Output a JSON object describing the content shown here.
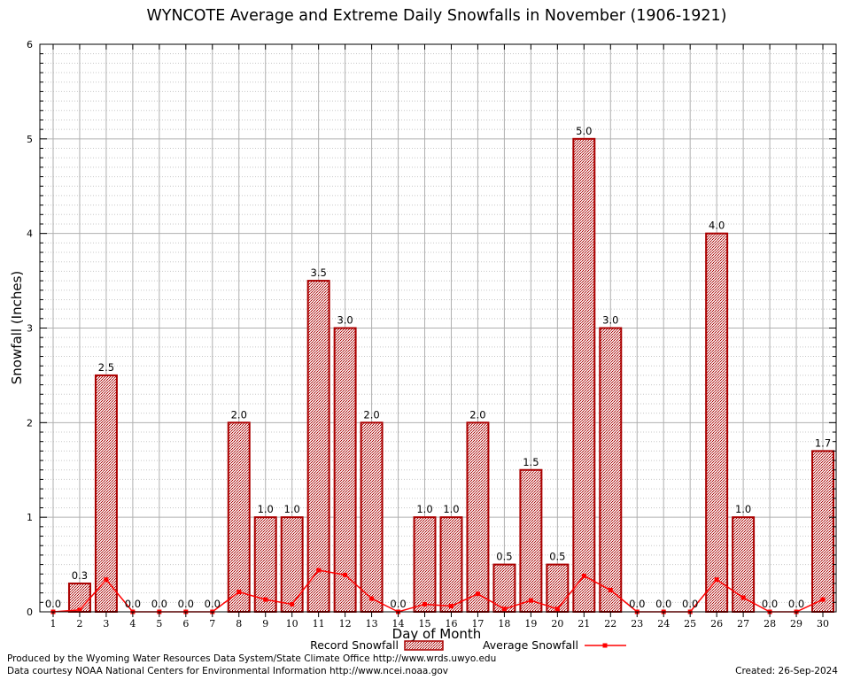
{
  "chart_data": {
    "type": "bar",
    "title": "WYNCOTE Average and Extreme Daily Snowfalls in November (1906-1921)",
    "xlabel": "Day of Month",
    "ylabel": "Snowfall (Inches)",
    "ylim": [
      0,
      6
    ],
    "yticks": [
      "0",
      "1",
      "2",
      "3",
      "4",
      "5",
      "6"
    ],
    "categories": [
      "1",
      "2",
      "3",
      "4",
      "5",
      "6",
      "7",
      "8",
      "9",
      "10",
      "11",
      "12",
      "13",
      "14",
      "15",
      "16",
      "17",
      "18",
      "19",
      "20",
      "21",
      "22",
      "23",
      "24",
      "25",
      "26",
      "27",
      "28",
      "29",
      "30"
    ],
    "series": [
      {
        "name": "Record Snowfall",
        "kind": "bar",
        "values": [
          0.0,
          0.3,
          2.5,
          0.0,
          0.0,
          0.0,
          0.0,
          2.0,
          1.0,
          1.0,
          3.5,
          3.0,
          2.0,
          0.0,
          1.0,
          1.0,
          2.0,
          0.5,
          1.5,
          0.5,
          5.0,
          3.0,
          0.0,
          0.0,
          0.0,
          4.0,
          1.0,
          0.0,
          0.0,
          1.7
        ],
        "labels": [
          "0.0",
          "0.3",
          "2.5",
          "0.0",
          "0.0",
          "0.0",
          "0.0",
          "2.0",
          "1.0",
          "1.0",
          "3.5",
          "3.0",
          "2.0",
          "0.0",
          "1.0",
          "1.0",
          "2.0",
          "0.5",
          "1.5",
          "0.5",
          "5.0",
          "3.0",
          "0.0",
          "0.0",
          "0.0",
          "4.0",
          "1.0",
          "0.0",
          "0.0",
          "1.7"
        ]
      },
      {
        "name": "Average Snowfall",
        "kind": "line",
        "values": [
          0.0,
          0.02,
          0.34,
          0.0,
          0.0,
          0.0,
          0.0,
          0.21,
          0.13,
          0.08,
          0.44,
          0.39,
          0.14,
          0.0,
          0.08,
          0.06,
          0.19,
          0.03,
          0.12,
          0.03,
          0.38,
          0.23,
          0.0,
          0.0,
          0.0,
          0.34,
          0.15,
          0.0,
          0.0,
          0.13
        ]
      }
    ],
    "grid": true,
    "legend_position": "bottom",
    "colors": {
      "bar_edge": "#aa0000",
      "bar_fill": "#f0dede",
      "bar_hatch": "#aa0000",
      "line": "#ff0000",
      "grid": "#b0b0b0"
    }
  },
  "footer": {
    "line1": "Produced by the Wyoming Water Resources Data System/State Climate Office http://www.wrds.uwyo.edu",
    "line2": "Data courtesy NOAA National Centers for Environmental Information http://www.ncei.noaa.gov",
    "created": "Created:  26-Sep-2024"
  }
}
